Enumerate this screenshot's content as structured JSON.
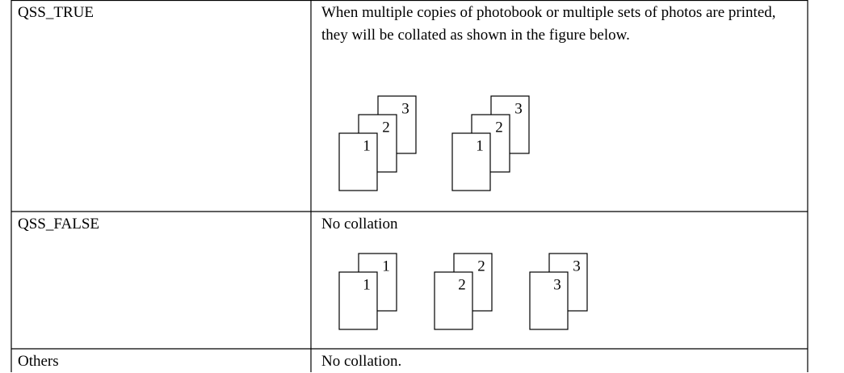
{
  "table": {
    "rows": [
      {
        "cells": [
          "QSS_TRUE",
          "When multiple copies of photobook or multiple sets of photos are printed, they will be collated as shown in the figure below."
        ],
        "figure": [
          [
            "1",
            "2",
            "3"
          ],
          [
            "1",
            "2",
            "3"
          ]
        ]
      },
      {
        "cells": [
          "QSS_FALSE",
          "No collation"
        ],
        "figure": [
          [
            "1",
            "1"
          ],
          [
            "2",
            "2"
          ],
          [
            "3",
            "3"
          ]
        ]
      },
      {
        "cells": [
          "Others",
          "No collation."
        ]
      }
    ]
  }
}
